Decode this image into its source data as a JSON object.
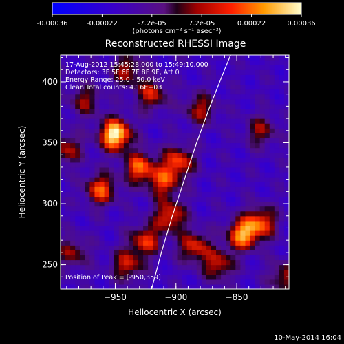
{
  "chart_data": {
    "type": "heatmap",
    "title": "Reconstructed RHESSI Image",
    "xlabel": "Heliocentric X (arcsec)",
    "ylabel": "Heliocentric Y (arcsec)",
    "xlim": [
      -995,
      -807
    ],
    "ylim": [
      230,
      422
    ],
    "x_ticks": [
      -950,
      -900,
      -850
    ],
    "y_ticks": [
      250,
      300,
      350,
      400
    ],
    "x_tick_labels": [
      "−950",
      "−900",
      "−850"
    ],
    "y_tick_labels": [
      "250",
      "300",
      "350",
      "400"
    ],
    "colorbar": {
      "range": [
        -0.00036,
        0.00036
      ],
      "ticks": [
        "-0.00036",
        "-0.00022",
        "-7.2e-05",
        "7.2e-05",
        "0.00022",
        "0.00036"
      ],
      "units": "(photons cm⁻² s⁻¹ asec⁻²)"
    },
    "info_lines": [
      "17-Aug-2012 15:45:28.000 to 15:49:10.000",
      "Detectors: 3F 5F 6F 7F 8F 9F, Att 0",
      "Energy Range: 25.0 - 50.0 keV",
      "Clean    Total counts: 4.16E+03"
    ],
    "peak_label": "Position of Peak = [-950,359]",
    "peak": {
      "x": -950,
      "y": 359
    },
    "limb_curve": [
      {
        "x": -920,
        "y": 230
      },
      {
        "x": -912,
        "y": 260
      },
      {
        "x": -903,
        "y": 290
      },
      {
        "x": -893,
        "y": 320
      },
      {
        "x": -883,
        "y": 350
      },
      {
        "x": -872,
        "y": 380
      },
      {
        "x": -860,
        "y": 410
      },
      {
        "x": -855,
        "y": 422
      }
    ],
    "bright_sources": [
      {
        "x": -950,
        "y": 357,
        "intensity": 1.0
      },
      {
        "x": -962,
        "y": 312,
        "intensity": 0.62
      },
      {
        "x": -930,
        "y": 330,
        "intensity": 0.65
      },
      {
        "x": -910,
        "y": 318,
        "intensity": 0.55
      },
      {
        "x": -898,
        "y": 335,
        "intensity": 0.6
      },
      {
        "x": -905,
        "y": 290,
        "intensity": 0.6
      },
      {
        "x": -925,
        "y": 270,
        "intensity": 0.55
      },
      {
        "x": -940,
        "y": 250,
        "intensity": 0.5
      },
      {
        "x": -885,
        "y": 265,
        "intensity": 0.55
      },
      {
        "x": -845,
        "y": 275,
        "intensity": 0.75
      },
      {
        "x": -830,
        "y": 285,
        "intensity": 0.6
      },
      {
        "x": -865,
        "y": 250,
        "intensity": 0.5
      },
      {
        "x": -920,
        "y": 390,
        "intensity": 0.5
      },
      {
        "x": -880,
        "y": 378,
        "intensity": 0.45
      },
      {
        "x": -990,
        "y": 345,
        "intensity": 0.45
      },
      {
        "x": -975,
        "y": 385,
        "intensity": 0.4
      },
      {
        "x": -830,
        "y": 360,
        "intensity": 0.4
      },
      {
        "x": -985,
        "y": 260,
        "intensity": 0.4
      },
      {
        "x": -940,
        "y": 410,
        "intensity": 0.45
      },
      {
        "x": -810,
        "y": 240,
        "intensity": 0.45
      }
    ]
  },
  "footer": {
    "timestamp": "10-May-2014 16:04"
  }
}
